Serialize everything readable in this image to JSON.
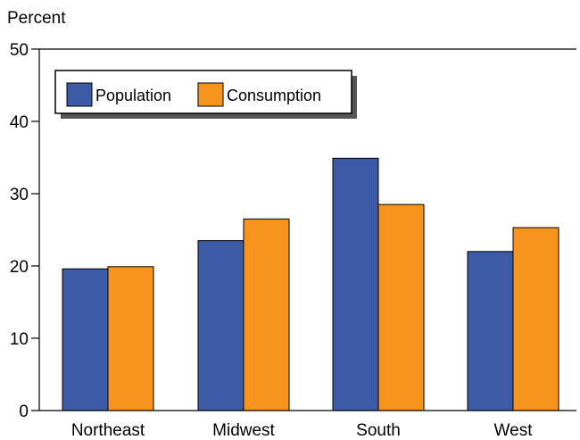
{
  "chart_data": {
    "type": "bar",
    "title": "",
    "xlabel": "",
    "ylabel": "Percent",
    "ylim": [
      0,
      50
    ],
    "yticks": [
      0,
      10,
      20,
      30,
      40,
      50
    ],
    "categories": [
      "Northeast",
      "Midwest",
      "South",
      "West"
    ],
    "series": [
      {
        "name": "Population",
        "values": [
          19.6,
          23.5,
          34.9,
          22.0
        ],
        "color": "#3c5aa6"
      },
      {
        "name": "Consumption",
        "values": [
          19.9,
          26.5,
          28.5,
          25.3
        ],
        "color": "#f7941d"
      }
    ],
    "legend": {
      "position": "top-left",
      "shadow": true
    },
    "grid": false
  }
}
